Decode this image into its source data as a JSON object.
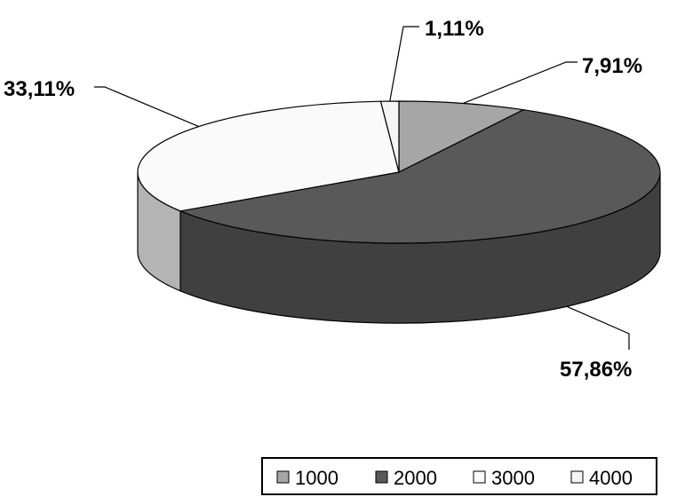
{
  "chart_data": {
    "type": "pie",
    "style": "3d",
    "categories": [
      "1000",
      "2000",
      "3000",
      "4000"
    ],
    "values": [
      7.91,
      57.86,
      33.11,
      1.11
    ],
    "labels": [
      "7,91%",
      "57,86%",
      "33,11%",
      "1,11%"
    ],
    "colors": {
      "1000": "#a6a6a6",
      "2000": "#595959",
      "3000": "#fafafa",
      "4000": "#f5f5f5"
    },
    "legend": {
      "position": "bottom-right",
      "entries": [
        "1000",
        "2000",
        "3000",
        "4000"
      ]
    }
  }
}
